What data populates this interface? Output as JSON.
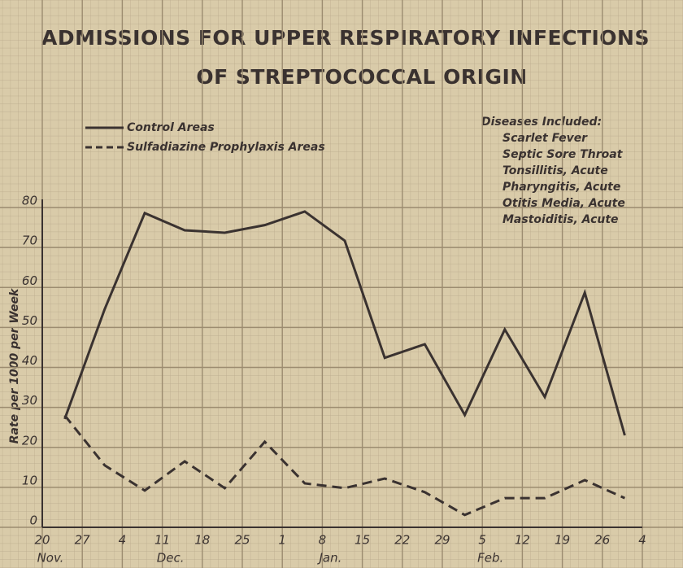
{
  "chart_data": {
    "type": "line",
    "title": [
      "Admissions for Upper Respiratory Infections",
      "of Streptococcal Origin"
    ],
    "y_label": "Rate per 1000 per Week",
    "x_tick_labels": [
      "20",
      "27",
      "4",
      "11",
      "18",
      "25",
      "1",
      "8",
      "15",
      "22",
      "29",
      "5",
      "12",
      "19",
      "26",
      "4"
    ],
    "x_month_labels": [
      "Nov.",
      null,
      null,
      "Dec.",
      null,
      null,
      null,
      "Jan.",
      null,
      null,
      null,
      "Feb.",
      null,
      null,
      null,
      null
    ],
    "series": [
      {
        "name": "Control Areas",
        "color": "#3a3230",
        "dash": false,
        "values": [
          27.1,
          54.6,
          78.6,
          74.3,
          73.7,
          75.6,
          79,
          71.7,
          42.4,
          45.8,
          28.1,
          49.5,
          32.6,
          58.7,
          23
        ]
      },
      {
        "name": "Sulfadiazine Prophylaxis Areas",
        "color": "#3a3230",
        "dash": true,
        "values": [
          28,
          15.5,
          9.2,
          16.5,
          9.8,
          21.4,
          11,
          9.8,
          12.2,
          8.8,
          3.1,
          7.3,
          7.3,
          11.8,
          7.3
        ]
      }
    ],
    "ylim": [
      0,
      80
    ],
    "yticks": [
      0,
      10,
      20,
      30,
      40,
      50,
      60,
      70,
      80
    ],
    "grid": true,
    "notes": {
      "title": "Diseases Included:",
      "items": [
        "Scarlet Fever",
        "Septic Sore Throat",
        "Tonsillitis, Acute",
        "Pharyngitis, Acute",
        "Otitis Media, Acute",
        "Mastoiditis, Acute"
      ]
    }
  }
}
